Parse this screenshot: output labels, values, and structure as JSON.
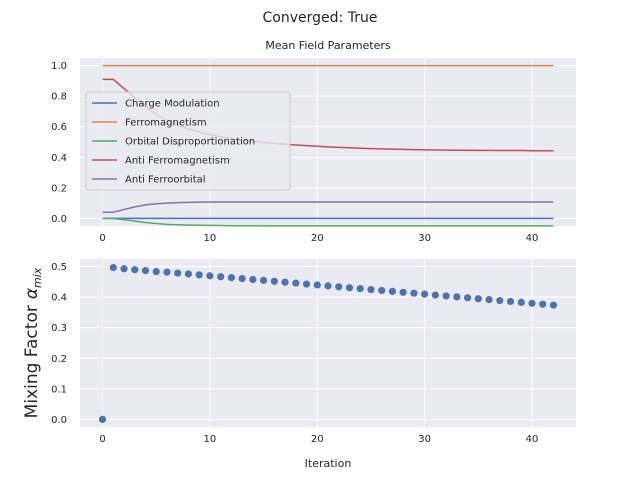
{
  "suptitle": "Converged: True",
  "chart_data": [
    {
      "type": "line",
      "title": "Mean Field Parameters",
      "xlabel": "",
      "ylabel": "",
      "xlim": [
        -2.1,
        44.1
      ],
      "ylim": [
        -0.05,
        1.05
      ],
      "xticks": [
        0,
        10,
        20,
        30,
        40
      ],
      "xtick_labels": [
        "0",
        "10",
        "20",
        "30",
        "40"
      ],
      "yticks": [
        0.0,
        0.2,
        0.4,
        0.6,
        0.8,
        1.0
      ],
      "ytick_labels": [
        "0.0",
        "0.2",
        "0.4",
        "0.6",
        "0.8",
        "1.0"
      ],
      "grid": true,
      "legend_position": "center-left",
      "x": [
        0,
        1,
        2,
        3,
        4,
        5,
        6,
        7,
        8,
        9,
        10,
        11,
        12,
        13,
        14,
        15,
        16,
        17,
        18,
        19,
        20,
        21,
        22,
        23,
        24,
        25,
        26,
        27,
        28,
        29,
        30,
        31,
        32,
        33,
        34,
        35,
        36,
        37,
        38,
        39,
        40,
        41,
        42
      ],
      "series": [
        {
          "name": "Charge Modulation",
          "color": "#4c72b0",
          "values": [
            0.0,
            0.0,
            0.0,
            0.0,
            0.0,
            0.0,
            0.0,
            0.0,
            0.0,
            0.0,
            0.0,
            0.0,
            0.0,
            0.0,
            0.0,
            0.0,
            0.0,
            0.0,
            0.0,
            0.0,
            0.0,
            0.0,
            0.0,
            0.0,
            0.0,
            0.0,
            0.0,
            0.0,
            0.0,
            0.0,
            0.0,
            0.0,
            0.0,
            0.0,
            0.0,
            0.0,
            0.0,
            0.0,
            0.0,
            0.0,
            0.0,
            0.0,
            0.0
          ]
        },
        {
          "name": "Ferromagnetism",
          "color": "#dd8452",
          "values": [
            1.0,
            1.0,
            1.0,
            1.0,
            1.0,
            1.0,
            1.0,
            1.0,
            1.0,
            1.0,
            1.0,
            1.0,
            1.0,
            1.0,
            1.0,
            1.0,
            1.0,
            1.0,
            1.0,
            1.0,
            1.0,
            1.0,
            1.0,
            1.0,
            1.0,
            1.0,
            1.0,
            1.0,
            1.0,
            1.0,
            1.0,
            1.0,
            1.0,
            1.0,
            1.0,
            1.0,
            1.0,
            1.0,
            1.0,
            1.0,
            1.0,
            1.0,
            1.0
          ]
        },
        {
          "name": "Orbital Disproportionation",
          "color": "#55a868",
          "values": [
            0.0,
            0.0,
            -0.008,
            -0.018,
            -0.027,
            -0.034,
            -0.039,
            -0.042,
            -0.044,
            -0.045,
            -0.046,
            -0.047,
            -0.048,
            -0.048,
            -0.048,
            -0.049,
            -0.049,
            -0.049,
            -0.049,
            -0.049,
            -0.049,
            -0.049,
            -0.049,
            -0.049,
            -0.049,
            -0.049,
            -0.049,
            -0.049,
            -0.049,
            -0.049,
            -0.049,
            -0.049,
            -0.049,
            -0.049,
            -0.049,
            -0.049,
            -0.049,
            -0.049,
            -0.049,
            -0.049,
            -0.049,
            -0.049,
            -0.049
          ]
        },
        {
          "name": "Anti Ferromagnetism",
          "color": "#c44e52",
          "values": [
            0.91,
            0.91,
            0.85,
            0.79,
            0.73,
            0.68,
            0.64,
            0.61,
            0.585,
            0.565,
            0.548,
            0.534,
            0.522,
            0.512,
            0.503,
            0.496,
            0.49,
            0.485,
            0.48,
            0.476,
            0.472,
            0.468,
            0.465,
            0.462,
            0.459,
            0.457,
            0.455,
            0.453,
            0.452,
            0.45,
            0.449,
            0.448,
            0.447,
            0.446,
            0.446,
            0.445,
            0.445,
            0.444,
            0.444,
            0.444,
            0.443,
            0.443,
            0.443
          ]
        },
        {
          "name": "Anti Ferroorbital",
          "color": "#8172b2",
          "values": [
            0.04,
            0.04,
            0.058,
            0.075,
            0.088,
            0.096,
            0.1,
            0.103,
            0.105,
            0.106,
            0.107,
            0.107,
            0.107,
            0.107,
            0.107,
            0.107,
            0.107,
            0.107,
            0.107,
            0.107,
            0.107,
            0.107,
            0.107,
            0.107,
            0.107,
            0.107,
            0.107,
            0.107,
            0.107,
            0.107,
            0.107,
            0.107,
            0.107,
            0.107,
            0.107,
            0.107,
            0.107,
            0.107,
            0.107,
            0.107,
            0.107,
            0.107,
            0.107
          ]
        }
      ]
    },
    {
      "type": "scatter",
      "title": "",
      "xlabel": "Iteration",
      "ylabel": "Mixing Factor",
      "ylabel_symbol": "α",
      "ylabel_subscript": "mix",
      "xlim": [
        -2.1,
        44.1
      ],
      "ylim": [
        -0.025,
        0.525
      ],
      "xticks": [
        0,
        10,
        20,
        30,
        40
      ],
      "xtick_labels": [
        "0",
        "10",
        "20",
        "30",
        "40"
      ],
      "yticks": [
        0.0,
        0.1,
        0.2,
        0.3,
        0.4,
        0.5
      ],
      "ytick_labels": [
        "0.0",
        "0.1",
        "0.2",
        "0.3",
        "0.4",
        "0.5"
      ],
      "grid": true,
      "color": "#4c72b0",
      "x": [
        0,
        1,
        2,
        3,
        4,
        5,
        6,
        7,
        8,
        9,
        10,
        11,
        12,
        13,
        14,
        15,
        16,
        17,
        18,
        19,
        20,
        21,
        22,
        23,
        24,
        25,
        26,
        27,
        28,
        29,
        30,
        31,
        32,
        33,
        34,
        35,
        36,
        37,
        38,
        39,
        40,
        41,
        42
      ],
      "y": [
        0.0,
        0.497,
        0.493,
        0.49,
        0.487,
        0.484,
        0.482,
        0.479,
        0.476,
        0.473,
        0.47,
        0.467,
        0.464,
        0.461,
        0.458,
        0.455,
        0.452,
        0.449,
        0.446,
        0.443,
        0.44,
        0.437,
        0.434,
        0.431,
        0.428,
        0.425,
        0.422,
        0.419,
        0.416,
        0.413,
        0.41,
        0.407,
        0.404,
        0.401,
        0.398,
        0.395,
        0.392,
        0.389,
        0.386,
        0.383,
        0.38,
        0.377,
        0.374
      ]
    }
  ]
}
